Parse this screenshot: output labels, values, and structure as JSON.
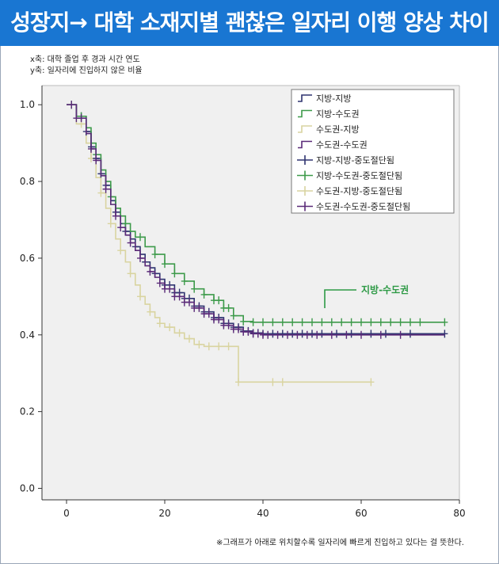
{
  "header": {
    "title": "성장지→ 대학 소재지별 괜찮은 일자리 이행 양상 차이"
  },
  "description": {
    "x_axis": "x축: 대학 졸업 후 경과 시간 연도",
    "y_axis": "y축: 일자리에 진입하지 않은 비율"
  },
  "footnote": "※그래프가 아래로 위치할수록 일자리에 빠르게 진입하고 있다는 걸 뜻한다.",
  "annotation": {
    "label": "지방-수도권",
    "color": "#2e9a46"
  },
  "legend": {
    "placement": "top-right",
    "entries": [
      {
        "label": "지방-지방",
        "kind": "step",
        "color": "#2f3470"
      },
      {
        "label": "지방-수도권",
        "kind": "step",
        "color": "#3d9a4a"
      },
      {
        "label": "수도권-지방",
        "kind": "step",
        "color": "#d9d4a0"
      },
      {
        "label": "수도권-수도권",
        "kind": "step",
        "color": "#5a2a78"
      },
      {
        "label": "지방-지방-중도절단됨",
        "kind": "censor",
        "color": "#2f3470"
      },
      {
        "label": "지방-수도권-중도절단됨",
        "kind": "censor",
        "color": "#3d9a4a"
      },
      {
        "label": "수도권-지방-중도절단됨",
        "kind": "censor",
        "color": "#d9d4a0"
      },
      {
        "label": "수도권-수도권-중도절단됨",
        "kind": "censor",
        "color": "#5a2a78"
      }
    ]
  },
  "chart_data": {
    "type": "line",
    "subtype": "kaplan-meier step",
    "xlim": [
      -5,
      80
    ],
    "ylim": [
      -0.03,
      1.05
    ],
    "xticks": [
      "0",
      "20",
      "40",
      "60",
      "80"
    ],
    "xtick_values": [
      0,
      20,
      40,
      60,
      80
    ],
    "yticks": [
      "0.0",
      "0.2",
      "0.4",
      "0.6",
      "0.8",
      "1.0"
    ],
    "ytick_values": [
      0.0,
      0.2,
      0.4,
      0.6,
      0.8,
      1.0
    ],
    "plot_background": "#f0f0f0",
    "grid": false,
    "series": [
      {
        "name": "지방-지방",
        "color": "#2f3470",
        "x": [
          0,
          2,
          4,
          5,
          6,
          7,
          8,
          9,
          10,
          11,
          12,
          13,
          14,
          15,
          16,
          17,
          18,
          19,
          20,
          22,
          24,
          26,
          28,
          30,
          32,
          34,
          36,
          38,
          40,
          50,
          60,
          70,
          77
        ],
        "y": [
          1.0,
          0.97,
          0.93,
          0.89,
          0.86,
          0.82,
          0.79,
          0.75,
          0.72,
          0.69,
          0.67,
          0.65,
          0.63,
          0.61,
          0.59,
          0.575,
          0.56,
          0.545,
          0.53,
          0.51,
          0.495,
          0.475,
          0.46,
          0.445,
          0.43,
          0.42,
          0.41,
          0.405,
          0.403,
          0.403,
          0.403,
          0.403,
          0.403
        ],
        "censored_x": [
          1,
          3,
          4,
          5,
          6,
          7,
          8,
          10,
          12,
          14,
          16,
          18,
          20,
          21,
          22,
          23,
          24,
          25,
          26,
          27,
          28,
          29,
          30,
          31,
          32,
          33,
          34,
          35,
          36,
          37,
          38,
          39,
          40,
          42,
          44,
          46,
          48,
          50,
          52,
          55,
          58,
          62,
          65,
          70,
          77
        ]
      },
      {
        "name": "지방-수도권",
        "color": "#3d9a4a",
        "x": [
          0,
          2,
          4,
          5,
          6,
          7,
          8,
          9,
          10,
          11,
          12,
          13,
          14,
          16,
          18,
          20,
          22,
          24,
          26,
          28,
          30,
          32,
          34,
          36,
          38,
          40,
          50,
          60,
          70,
          77
        ],
        "y": [
          1.0,
          0.97,
          0.94,
          0.9,
          0.87,
          0.83,
          0.8,
          0.76,
          0.73,
          0.71,
          0.69,
          0.67,
          0.655,
          0.63,
          0.61,
          0.585,
          0.56,
          0.54,
          0.52,
          0.505,
          0.49,
          0.47,
          0.45,
          0.435,
          0.433,
          0.433,
          0.433,
          0.433,
          0.433,
          0.433
        ],
        "censored_x": [
          1,
          3,
          6,
          9,
          12,
          15,
          18,
          20,
          22,
          24,
          26,
          28,
          30,
          31,
          32,
          33,
          34,
          36,
          38,
          40,
          42,
          44,
          46,
          48,
          50,
          52,
          54,
          56,
          58,
          60,
          62,
          64,
          66,
          68,
          70,
          72,
          77
        ]
      },
      {
        "name": "수도권-지방",
        "color": "#d9d4a0",
        "x": [
          0,
          2,
          4,
          5,
          6,
          7,
          8,
          9,
          10,
          11,
          12,
          13,
          14,
          15,
          16,
          17,
          18,
          19,
          20,
          22,
          24,
          26,
          28,
          30,
          35,
          62
        ],
        "y": [
          1.0,
          0.95,
          0.9,
          0.86,
          0.81,
          0.77,
          0.73,
          0.69,
          0.65,
          0.62,
          0.59,
          0.56,
          0.53,
          0.5,
          0.48,
          0.46,
          0.445,
          0.43,
          0.42,
          0.405,
          0.39,
          0.375,
          0.37,
          0.37,
          0.277,
          0.277
        ],
        "censored_x": [
          1,
          3,
          5,
          7,
          9,
          11,
          13,
          15,
          17,
          19,
          21,
          23,
          25,
          27,
          29,
          31,
          33,
          35,
          42,
          44,
          62
        ]
      },
      {
        "name": "수도권-수도권",
        "color": "#5a2a78",
        "x": [
          0,
          2,
          4,
          5,
          6,
          7,
          8,
          9,
          10,
          11,
          12,
          13,
          14,
          15,
          16,
          17,
          18,
          19,
          20,
          22,
          24,
          26,
          28,
          30,
          32,
          34,
          36,
          38,
          40,
          50,
          60,
          70,
          77
        ],
        "y": [
          1.0,
          0.965,
          0.925,
          0.885,
          0.855,
          0.815,
          0.78,
          0.74,
          0.71,
          0.68,
          0.66,
          0.64,
          0.62,
          0.6,
          0.58,
          0.565,
          0.55,
          0.535,
          0.52,
          0.5,
          0.485,
          0.47,
          0.455,
          0.44,
          0.425,
          0.415,
          0.408,
          0.403,
          0.4,
          0.4,
          0.4,
          0.4,
          0.4
        ],
        "censored_x": [
          1,
          2,
          3,
          5,
          6,
          8,
          10,
          11,
          13,
          15,
          17,
          19,
          20,
          21,
          22,
          23,
          24,
          25,
          26,
          27,
          28,
          29,
          30,
          31,
          32,
          33,
          34,
          35,
          36,
          37,
          38,
          39,
          40,
          41,
          43,
          45,
          47,
          49,
          51,
          54,
          57,
          60,
          64,
          68
        ]
      }
    ]
  }
}
